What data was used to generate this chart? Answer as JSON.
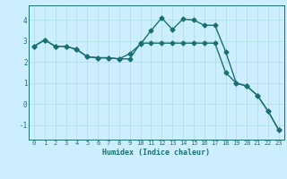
{
  "title": "",
  "xlabel": "Humidex (Indice chaleur)",
  "background_color": "#cceeff",
  "line_color": "#1a7070",
  "xlim": [
    -0.5,
    23.5
  ],
  "ylim": [
    -1.7,
    4.7
  ],
  "xticks": [
    0,
    1,
    2,
    3,
    4,
    5,
    6,
    7,
    8,
    9,
    10,
    11,
    12,
    13,
    14,
    15,
    16,
    17,
    18,
    19,
    20,
    21,
    22,
    23
  ],
  "yticks": [
    -1,
    0,
    1,
    2,
    3,
    4
  ],
  "curve1_x": [
    0,
    1,
    2,
    3,
    4,
    5,
    6,
    7,
    8,
    9,
    10,
    11,
    12,
    13,
    14,
    15,
    16,
    17,
    18,
    19,
    20,
    21,
    22,
    23
  ],
  "curve1_y": [
    2.75,
    3.05,
    2.75,
    2.75,
    2.6,
    2.25,
    2.2,
    2.2,
    2.15,
    2.4,
    2.85,
    3.5,
    4.1,
    3.55,
    4.05,
    4.0,
    3.75,
    3.75,
    2.5,
    1.0,
    0.85,
    0.4,
    -0.35,
    -1.25
  ],
  "curve2_x": [
    0,
    1,
    2,
    3,
    4,
    5,
    6,
    7,
    8,
    9,
    10,
    11,
    12,
    13,
    14,
    15,
    16,
    17,
    18,
    19,
    20,
    21,
    22,
    23
  ],
  "curve2_y": [
    2.75,
    3.05,
    2.75,
    2.75,
    2.6,
    2.25,
    2.2,
    2.2,
    2.15,
    2.15,
    2.9,
    2.9,
    2.9,
    2.9,
    2.9,
    2.9,
    2.9,
    2.9,
    1.5,
    1.0,
    0.85,
    0.4,
    -0.35,
    -1.25
  ],
  "grid_color": "#aadddd",
  "tick_color": "#1a7070",
  "marker": "D",
  "marker_size": 2.5,
  "line_width": 1.0,
  "tick_fontsize": 5.0,
  "xlabel_fontsize": 6.0
}
